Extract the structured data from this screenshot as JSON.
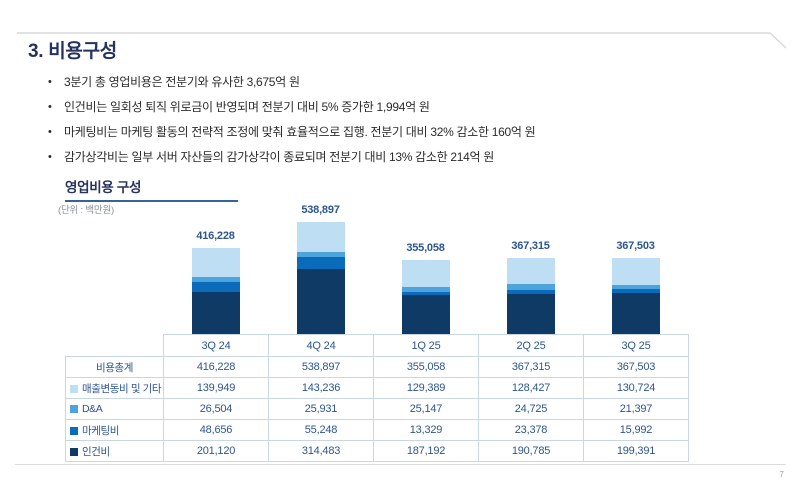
{
  "page": {
    "title": "3. 비용구성",
    "page_number": "7"
  },
  "bullets": [
    "3분기 총 영업비용은 전분기와 유사한 3,675억 원",
    "인건비는 일회성 퇴직 위로금이 반영되며 전분기 대비 5% 증가한 1,994억 원",
    "마케팅비는 마케팅 활동의 전략적 조정에 맞춰 효율적으로 집행. 전분기 대비 32% 감소한 160억 원",
    "감가상각비는 일부 서버 자산들의 감가상각이 종료되며 전분기 대비 13% 감소한 214억 원"
  ],
  "chart_section": {
    "title": "영업비용 구성",
    "unit_label": "(단위 : 백만원)"
  },
  "chart_data": {
    "type": "bar",
    "stacked": true,
    "title": "영업비용 구성",
    "unit": "백만원",
    "categories": [
      "3Q 24",
      "4Q 24",
      "1Q 25",
      "2Q 25",
      "3Q 25"
    ],
    "series": [
      {
        "name": "인건비",
        "color": "#0F3A66",
        "values": [
          201120,
          314483,
          187192,
          190785,
          199391
        ]
      },
      {
        "name": "마케팅비",
        "color": "#0A6BBA",
        "values": [
          48656,
          55248,
          13329,
          23378,
          15992
        ]
      },
      {
        "name": "D&A",
        "color": "#4FA3DC",
        "values": [
          26504,
          25931,
          25147,
          24725,
          21397
        ]
      },
      {
        "name": "매출변동비 및 기타",
        "color": "#BEDFF3",
        "values": [
          139949,
          143236,
          129389,
          128427,
          130724
        ]
      }
    ],
    "totals": [
      416228,
      538897,
      355058,
      367315,
      367503
    ],
    "ylim": [
      0,
      538897
    ],
    "legend_position": "table-left",
    "grid": false
  },
  "table": {
    "columns": [
      "3Q 24",
      "4Q 24",
      "1Q 25",
      "2Q 25",
      "3Q 25"
    ],
    "rows": [
      {
        "label": "비용총계",
        "swatch": null,
        "values": [
          416228,
          538897,
          355058,
          367315,
          367503
        ]
      },
      {
        "label": "매출변동비 및 기타",
        "swatch": "#BEDFF3",
        "values": [
          139949,
          143236,
          129389,
          128427,
          130724
        ]
      },
      {
        "label": "D&A",
        "swatch": "#4FA3DC",
        "values": [
          26504,
          25931,
          25147,
          24725,
          21397
        ]
      },
      {
        "label": "마케팅비",
        "swatch": "#0A6BBA",
        "values": [
          48656,
          55248,
          13329,
          23378,
          15992
        ]
      },
      {
        "label": "인건비",
        "swatch": "#0F3A66",
        "values": [
          201120,
          314483,
          187192,
          190785,
          199391
        ]
      }
    ]
  },
  "colors": {
    "title_navy": "#26325F",
    "table_text": "#2D568F",
    "border": "#C9D7E5",
    "underline": "#35639B",
    "decor_line": "#D9D9D9"
  }
}
